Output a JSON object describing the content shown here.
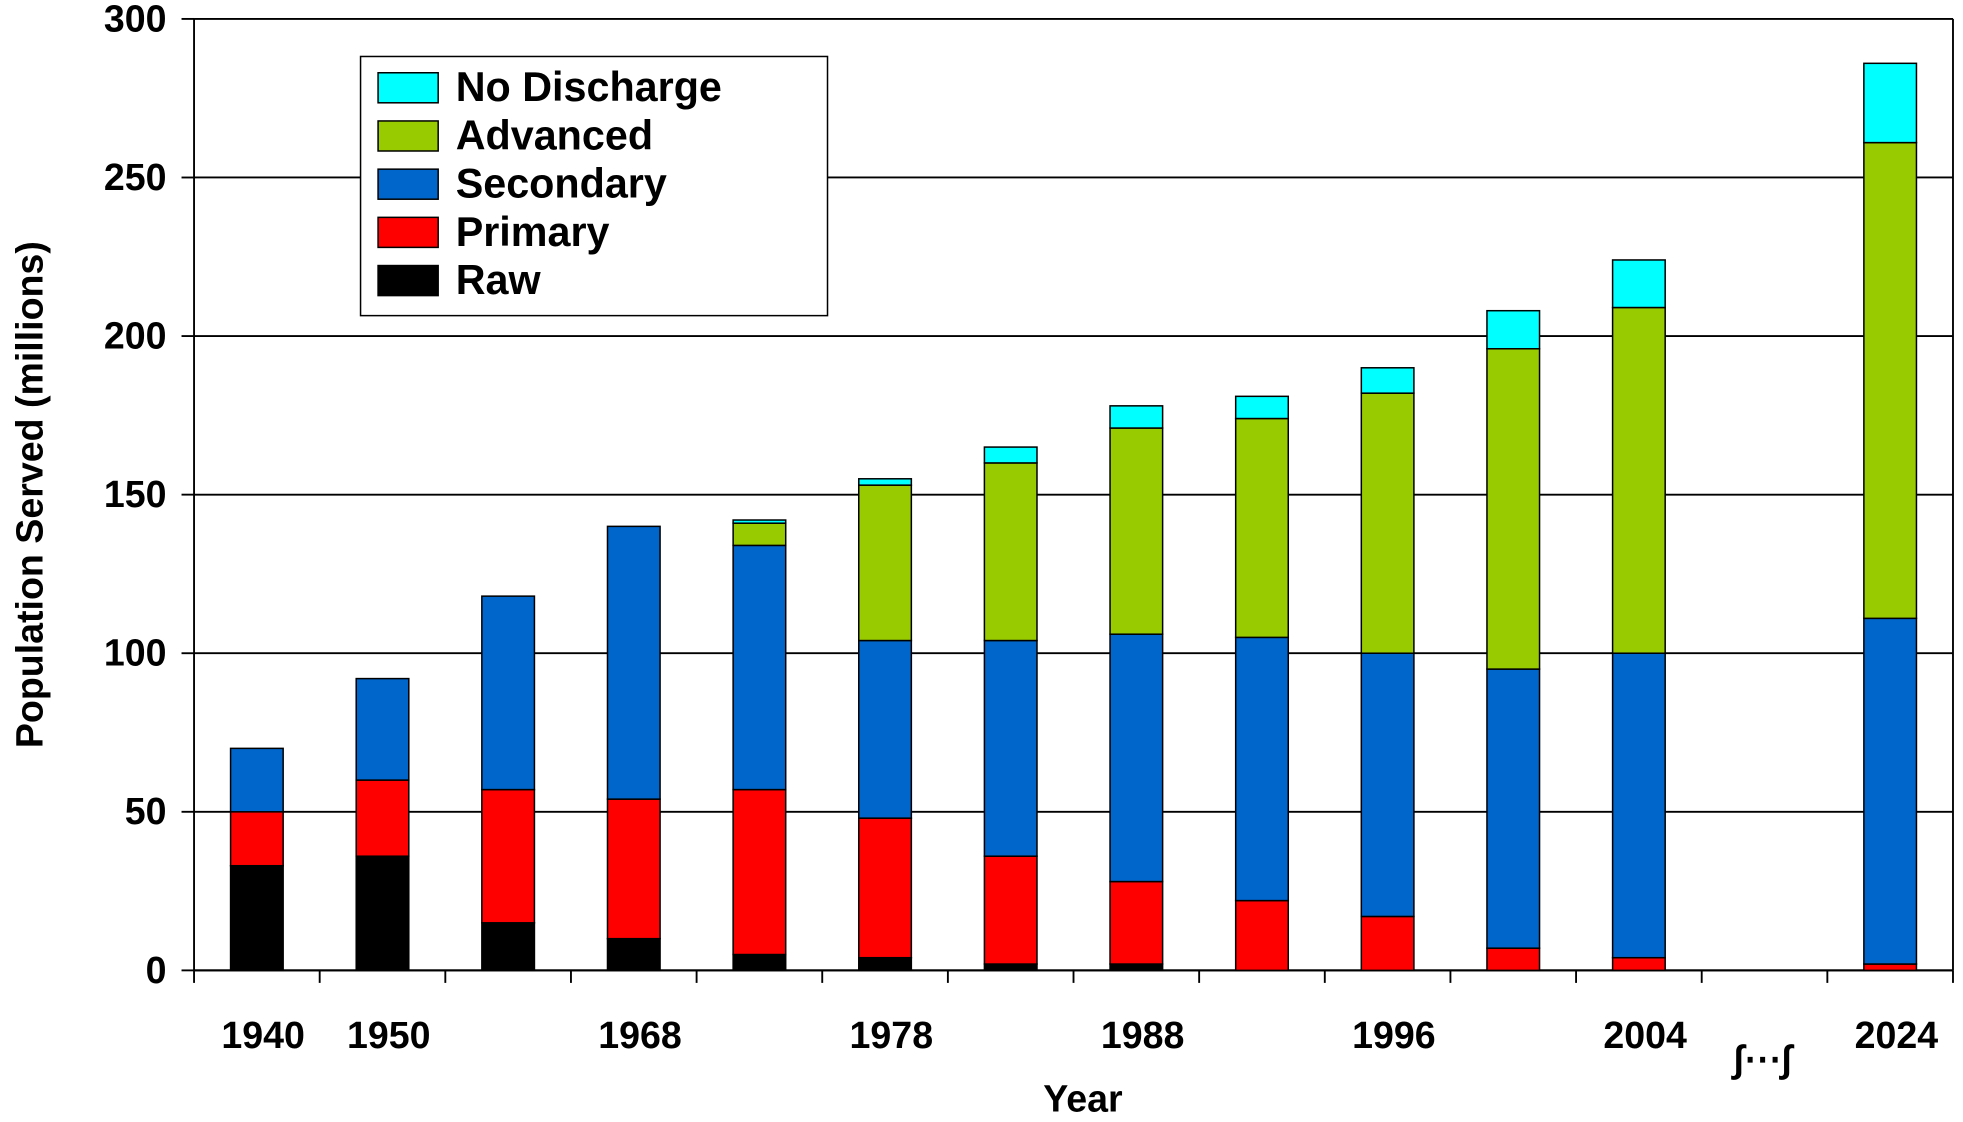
{
  "chart_data": {
    "type": "stacked_bar",
    "x_label": "Year",
    "y_label": "Population Served (millions)",
    "categories": [
      "1940",
      "1950",
      null,
      "1968",
      null,
      "1978",
      null,
      "1988",
      null,
      "1996",
      null,
      "2004",
      null,
      "2024"
    ],
    "series": [
      {
        "name": "Raw",
        "color": "#000000",
        "values": [
          33,
          36,
          15,
          10,
          5,
          4,
          2,
          2,
          0,
          0,
          0,
          0,
          null,
          0
        ]
      },
      {
        "name": "Primary",
        "color": "#ff0000",
        "values": [
          17,
          24,
          42,
          44,
          52,
          44,
          34,
          26,
          22,
          17,
          7,
          4,
          null,
          2
        ]
      },
      {
        "name": "Secondary",
        "color": "#0066cc",
        "values": [
          20,
          32,
          61,
          86,
          77,
          56,
          68,
          78,
          83,
          83,
          88,
          96,
          null,
          109
        ]
      },
      {
        "name": "Advanced",
        "color": "#99cc00",
        "values": [
          0,
          0,
          0,
          0,
          7,
          49,
          56,
          65,
          69,
          82,
          101,
          109,
          null,
          150
        ]
      },
      {
        "name": "No Discharge",
        "color": "#00ffff",
        "values": [
          0,
          0,
          0,
          0,
          1,
          2,
          5,
          7,
          7,
          8,
          12,
          15,
          null,
          25
        ]
      }
    ],
    "ylim": [
      0,
      300
    ],
    "yticks": [
      0,
      50,
      100,
      150,
      200,
      250,
      300
    ],
    "grid": true,
    "legend": "upper left"
  }
}
